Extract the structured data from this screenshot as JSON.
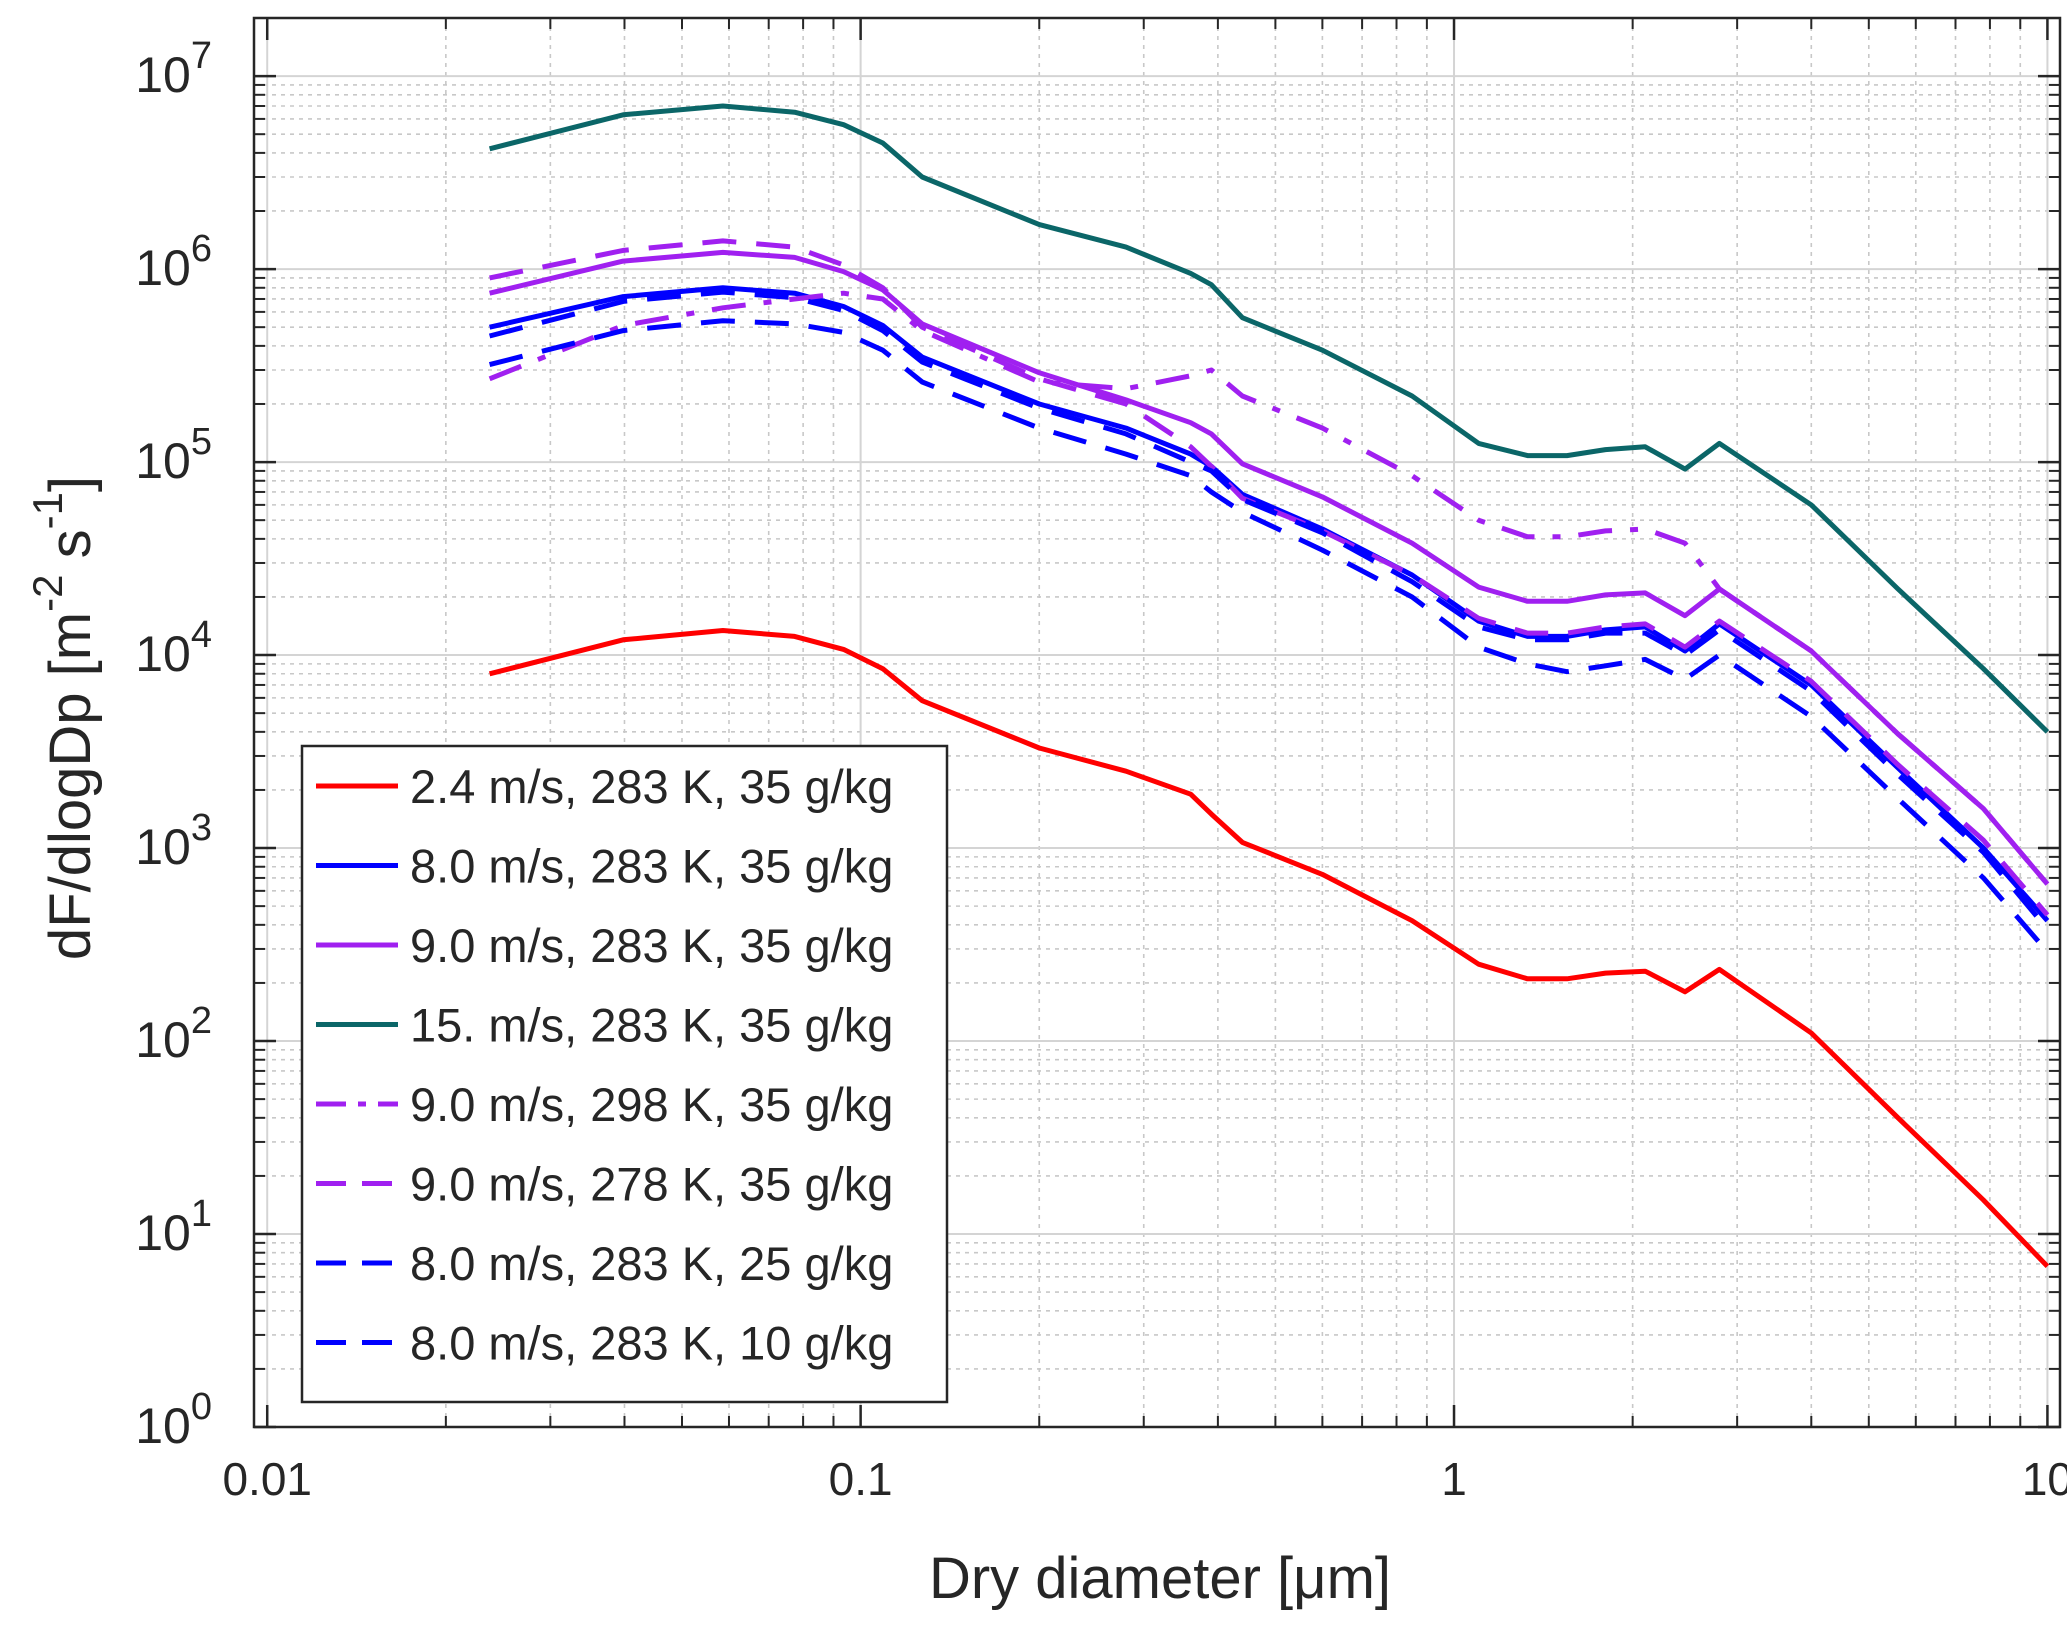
{
  "chart_data": {
    "type": "line",
    "xlabel": "Dry diameter [μm]",
    "ylabel": "dF/dlogDp [m",
    "ylabel_exp1": "-2",
    "ylabel_mid": " s",
    "ylabel_exp2": "-1",
    "ylabel_end": "]",
    "xscale": "log",
    "yscale": "log",
    "xlim": [
      0.0095,
      10.5
    ],
    "ylim": [
      1,
      20000000
    ],
    "grid": true,
    "minor_grid": true,
    "legend_position": "bottom-left",
    "x_ticks": [
      {
        "value": 0.01,
        "label": "0.01"
      },
      {
        "value": 0.1,
        "label": "0.1"
      },
      {
        "value": 1,
        "label": "1"
      },
      {
        "value": 10,
        "label": "10"
      }
    ],
    "y_ticks": [
      {
        "value": 1,
        "base": "10",
        "exp": "0"
      },
      {
        "value": 10,
        "base": "10",
        "exp": "1"
      },
      {
        "value": 100,
        "base": "10",
        "exp": "2"
      },
      {
        "value": 1000,
        "base": "10",
        "exp": "3"
      },
      {
        "value": 10000,
        "base": "10",
        "exp": "4"
      },
      {
        "value": 100000,
        "base": "10",
        "exp": "5"
      },
      {
        "value": 1000000,
        "base": "10",
        "exp": "6"
      },
      {
        "value": 10000000,
        "base": "10",
        "exp": "7"
      }
    ],
    "x": [
      0.0237,
      0.0398,
      0.0586,
      0.0774,
      0.0936,
      0.109,
      0.127,
      0.2,
      0.28,
      0.36,
      0.39,
      0.44,
      0.6,
      0.85,
      1.1,
      1.33,
      1.55,
      1.8,
      2.1,
      2.45,
      2.8,
      4.0,
      5.6,
      7.8,
      10.0
    ],
    "series": [
      {
        "name": "2.4 m/s, 283 K, 35 g/kg",
        "color": "#ff0000",
        "dash": "solid",
        "values": [
          8000,
          12000,
          13400,
          12500,
          10700,
          8500,
          5800,
          3300,
          2500,
          1900,
          1500,
          1070,
          730,
          420,
          250,
          210,
          210,
          225,
          230,
          180,
          235,
          110,
          40,
          15,
          6.8
        ]
      },
      {
        "name": "8.0 m/s, 283 K, 35 g/kg",
        "color": "#0000ff",
        "dash": "solid",
        "values": [
          500000,
          720000,
          800000,
          750000,
          640000,
          510000,
          350000,
          200000,
          150000,
          110000,
          95000,
          68000,
          45000,
          26000,
          15000,
          12500,
          12500,
          13500,
          14000,
          10500,
          14500,
          7000,
          2600,
          1000,
          420
        ]
      },
      {
        "name": "9.0 m/s, 283 K, 35 g/kg",
        "color": "#a020f0",
        "dash": "solid",
        "values": [
          750000,
          1100000,
          1220000,
          1150000,
          970000,
          780000,
          520000,
          290000,
          210000,
          160000,
          140000,
          98000,
          66000,
          38000,
          22500,
          19000,
          19000,
          20500,
          21000,
          16000,
          22000,
          10500,
          3900,
          1600,
          650
        ]
      },
      {
        "name": "15. m/s, 283 K, 35 g/kg",
        "color": "#0b6668",
        "dash": "solid",
        "values": [
          4200000,
          6300000,
          7000000,
          6500000,
          5600000,
          4500000,
          3000000,
          1700000,
          1300000,
          950000,
          830000,
          560000,
          380000,
          220000,
          125000,
          108000,
          108000,
          116000,
          120000,
          92000,
          125000,
          60000,
          22000,
          8500,
          4000
        ]
      },
      {
        "name": "9.0 m/s, 298 K, 35 g/kg",
        "color": "#a020f0",
        "dash": "dashdot",
        "values": [
          270000,
          510000,
          630000,
          700000,
          750000,
          700000,
          480000,
          260000,
          240000,
          280000,
          300000,
          220000,
          150000,
          85000,
          50000,
          41000,
          41000,
          44000,
          45000,
          38000,
          22000,
          10500,
          3900,
          1600,
          650
        ]
      },
      {
        "name": "9.0 m/s, 278 K, 35 g/kg",
        "color": "#a020f0",
        "dash": "dashed",
        "values": [
          900000,
          1250000,
          1400000,
          1300000,
          1050000,
          800000,
          500000,
          270000,
          200000,
          120000,
          95000,
          65000,
          44000,
          26000,
          15500,
          13000,
          13000,
          14000,
          14500,
          11000,
          15000,
          7300,
          2700,
          1100,
          450
        ]
      },
      {
        "name": "8.0 m/s, 283 K, 25 g/kg",
        "color": "#0000ff",
        "dash": "dashed",
        "values": [
          450000,
          680000,
          760000,
          710000,
          610000,
          480000,
          330000,
          190000,
          140000,
          100000,
          90000,
          64000,
          43000,
          24000,
          14000,
          12000,
          12000,
          13000,
          13000,
          10000,
          13500,
          6500,
          2400,
          950,
          380
        ]
      },
      {
        "name": "8.0 m/s, 283 K, 10 g/kg",
        "color": "#0000ff",
        "dash": "dashed",
        "values": [
          320000,
          480000,
          540000,
          520000,
          470000,
          380000,
          260000,
          150000,
          110000,
          85000,
          70000,
          55000,
          35000,
          20000,
          11000,
          9000,
          8200,
          8800,
          9500,
          7500,
          10000,
          4800,
          1800,
          700,
          290
        ]
      }
    ]
  }
}
